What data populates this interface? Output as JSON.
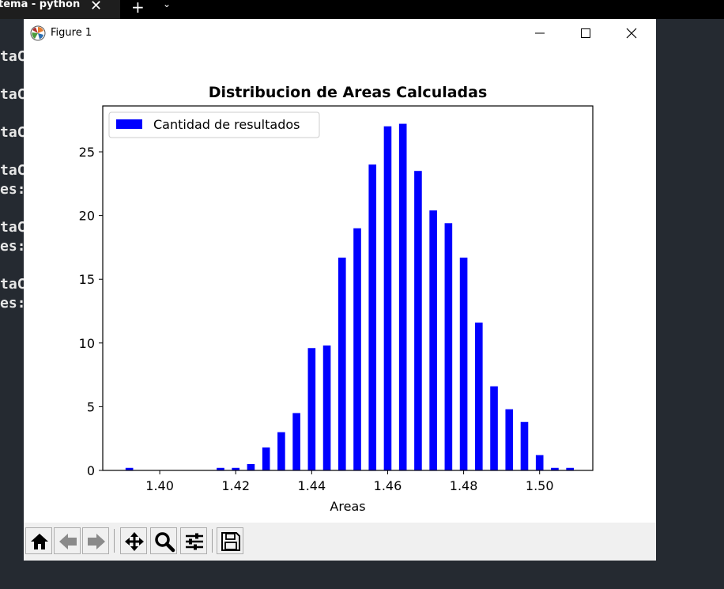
{
  "terminal": {
    "tab_title": "tema - python",
    "lines": [
      "taCo",
      "taCo",
      "taCo",
      "taCo",
      "es:",
      "taCo",
      "es:",
      "taCo",
      "es:"
    ]
  },
  "window": {
    "title": "Figure 1"
  },
  "chart_data": {
    "type": "bar",
    "title": "Distribucion de Areas Calculadas",
    "xlabel": "Areas",
    "ylabel": "",
    "legend": {
      "label": "Cantidad de resultados",
      "position": "top-left"
    },
    "bar_color": "#0000ff",
    "xlim": [
      1.385,
      1.514
    ],
    "ylim": [
      0,
      28.6
    ],
    "xticks": [
      1.4,
      1.42,
      1.44,
      1.46,
      1.48,
      1.5
    ],
    "xtick_labels": [
      "1.40",
      "1.42",
      "1.44",
      "1.46",
      "1.48",
      "1.50"
    ],
    "yticks": [
      0,
      5,
      10,
      15,
      20,
      25
    ],
    "ytick_labels": [
      "0",
      "5",
      "10",
      "15",
      "20",
      "25"
    ],
    "bar_width": 0.002,
    "x": [
      1.392,
      1.416,
      1.42,
      1.424,
      1.428,
      1.432,
      1.436,
      1.44,
      1.444,
      1.448,
      1.452,
      1.456,
      1.46,
      1.464,
      1.468,
      1.472,
      1.476,
      1.48,
      1.484,
      1.488,
      1.492,
      1.496,
      1.5,
      1.504,
      1.508
    ],
    "values": [
      0.2,
      0.2,
      0.2,
      0.5,
      1.8,
      3.0,
      4.5,
      9.6,
      9.8,
      16.7,
      19.0,
      24.0,
      27.0,
      27.2,
      23.5,
      20.4,
      19.4,
      16.7,
      11.6,
      6.6,
      4.8,
      3.8,
      1.2,
      0.2,
      0.2
    ]
  }
}
